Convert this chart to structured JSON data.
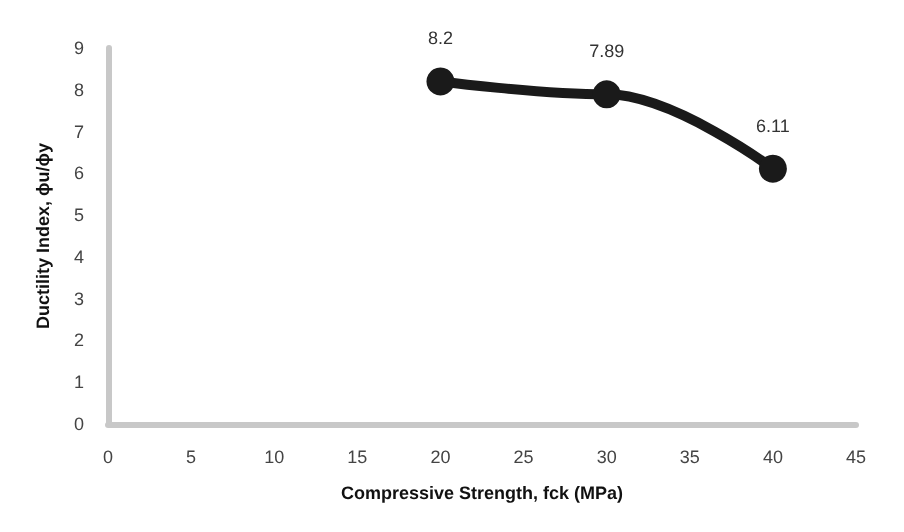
{
  "chart_data": {
    "type": "line",
    "xlabel": "Compressive Strength, fck (MPa)",
    "ylabel": "Ductility Index, ϕu/ϕy",
    "x": [
      20,
      30,
      40
    ],
    "series": [
      {
        "color": "#1a1a1a",
        "values": [
          8.2,
          7.89,
          6.11
        ]
      }
    ],
    "xlim": [
      0,
      45
    ],
    "xticks": [
      0,
      5,
      10,
      15,
      20,
      25,
      30,
      35,
      40,
      45
    ],
    "ylim": [
      0,
      9
    ],
    "yticks": [
      0,
      1,
      2,
      3,
      4,
      5,
      6,
      7,
      8,
      9
    ],
    "grid": false,
    "marker": "circle",
    "line_style": "solid",
    "data_labels": true
  }
}
